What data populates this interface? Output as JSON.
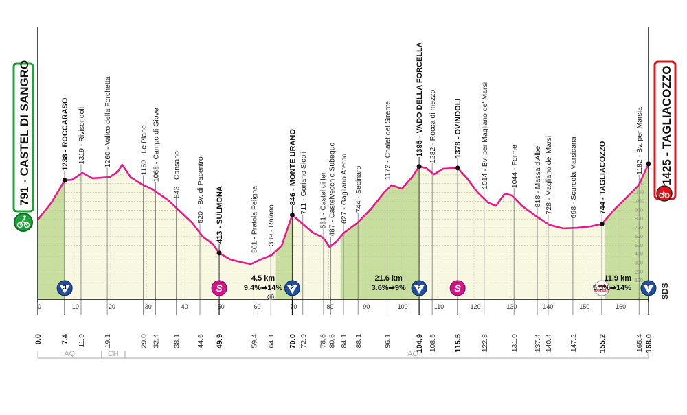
{
  "colors": {
    "profile_line": "#e8198b",
    "climb_fill": "#c8de9e",
    "flat_fill": "#f8f8e2",
    "start": "#1fa33a",
    "finish": "#e3141b",
    "kom": "#1f4e9c",
    "sprint": "#d4148a"
  },
  "start": {
    "label": "791 - CASTEL DI SANGRO",
    "icon": "cyclist-icon"
  },
  "finish": {
    "label": "1425 - TAGLIACOZZO",
    "icon": "cyclist-icon"
  },
  "chart_data": {
    "type": "area",
    "xlabel": "",
    "ylabel": "",
    "xlim": [
      0,
      168
    ],
    "grid": true,
    "x_ticks": [
      0,
      10,
      20,
      30,
      40,
      50,
      60,
      70,
      80,
      90,
      100,
      110,
      120,
      130,
      140,
      150,
      160
    ],
    "elevation_scale": [
      100,
      200,
      300,
      400,
      500,
      600,
      700,
      800,
      900,
      1000,
      1100,
      1200
    ],
    "profile": [
      [
        0,
        791
      ],
      [
        3.8,
        988
      ],
      [
        7.4,
        1238
      ],
      [
        9.4,
        1245
      ],
      [
        12.3,
        1323
      ],
      [
        15.1,
        1261
      ],
      [
        19.8,
        1276
      ],
      [
        22.1,
        1339
      ],
      [
        23.2,
        1416
      ],
      [
        25.5,
        1276
      ],
      [
        28.4,
        1198
      ],
      [
        31.2,
        1144
      ],
      [
        33.4,
        1082
      ],
      [
        35.9,
        1012
      ],
      [
        38.7,
        903
      ],
      [
        42.5,
        755
      ],
      [
        45.4,
        599
      ],
      [
        48.2,
        514
      ],
      [
        49.9,
        413
      ],
      [
        52.9,
        342
      ],
      [
        55.7,
        311
      ],
      [
        58.6,
        288
      ],
      [
        61.4,
        342
      ],
      [
        64.3,
        389
      ],
      [
        67.1,
        498
      ],
      [
        70.0,
        846
      ],
      [
        72.8,
        747
      ],
      [
        75.6,
        646
      ],
      [
        78.4,
        591
      ],
      [
        80.3,
        482
      ],
      [
        82.2,
        545
      ],
      [
        84.1,
        638
      ],
      [
        87.9,
        755
      ],
      [
        91.6,
        911
      ],
      [
        95.4,
        1105
      ],
      [
        97.3,
        1183
      ],
      [
        100.2,
        1144
      ],
      [
        103.0,
        1276
      ],
      [
        104.9,
        1395
      ],
      [
        106.8,
        1377
      ],
      [
        109.0,
        1307
      ],
      [
        111.5,
        1370
      ],
      [
        115.5,
        1378
      ],
      [
        118.1,
        1261
      ],
      [
        120.9,
        1105
      ],
      [
        123.8,
        988
      ],
      [
        126.0,
        949
      ],
      [
        128.5,
        1089
      ],
      [
        130.4,
        1066
      ],
      [
        133.2,
        949
      ],
      [
        137.0,
        833
      ],
      [
        140.8,
        732
      ],
      [
        144.6,
        693
      ],
      [
        148.3,
        700
      ],
      [
        152.1,
        716
      ],
      [
        155.2,
        744
      ],
      [
        158.7,
        911
      ],
      [
        162.5,
        1066
      ],
      [
        165.3,
        1183
      ],
      [
        168.0,
        1425
      ]
    ],
    "climb_sections": [
      [
        0,
        7.4
      ],
      [
        65.5,
        70.0
      ],
      [
        83.3,
        104.9
      ],
      [
        156.1,
        168.0
      ]
    ],
    "km_labels": [
      {
        "km": 0,
        "text": "0.0",
        "bold": true
      },
      {
        "km": 7.4,
        "text": "7.4",
        "bold": true
      },
      {
        "km": 11.9,
        "text": "11.9"
      },
      {
        "km": 19.1,
        "text": "19.1"
      },
      {
        "km": 29.0,
        "text": "29.0"
      },
      {
        "km": 32.4,
        "text": "32.4"
      },
      {
        "km": 38.1,
        "text": "38.1"
      },
      {
        "km": 44.6,
        "text": "44.6"
      },
      {
        "km": 49.9,
        "text": "49.9",
        "bold": true
      },
      {
        "km": 59.4,
        "text": "59.4"
      },
      {
        "km": 64.1,
        "text": "64.1"
      },
      {
        "km": 70.0,
        "text": "70.0",
        "bold": true
      },
      {
        "km": 72.9,
        "text": "72.9"
      },
      {
        "km": 78.6,
        "text": "78.6"
      },
      {
        "km": 80.6,
        "text": "80.6"
      },
      {
        "km": 84.1,
        "text": "84.1"
      },
      {
        "km": 88.1,
        "text": "88.1"
      },
      {
        "km": 96.1,
        "text": "96.1"
      },
      {
        "km": 104.9,
        "text": "104.9",
        "bold": true
      },
      {
        "km": 108.5,
        "text": "108.5"
      },
      {
        "km": 115.5,
        "text": "115.5",
        "bold": true
      },
      {
        "km": 122.8,
        "text": "122.8"
      },
      {
        "km": 131.0,
        "text": "131.0"
      },
      {
        "km": 137.4,
        "text": "137.4"
      },
      {
        "km": 140.4,
        "text": "140.4"
      },
      {
        "km": 147.2,
        "text": "147.2"
      },
      {
        "km": 155.2,
        "text": "155.2",
        "bold": true
      },
      {
        "km": 165.4,
        "text": "165.4"
      },
      {
        "km": 168.0,
        "text": "168.0",
        "bold": true
      }
    ],
    "waypoints": [
      {
        "km": 7.4,
        "text": "1238 - ROCCARASO",
        "bold": true,
        "dot": true
      },
      {
        "km": 11.9,
        "text": "1319 - Rivisondoli"
      },
      {
        "km": 19.1,
        "text": "1260 - Valico della Forchetta"
      },
      {
        "km": 29.0,
        "text": "1159 - Le Piane"
      },
      {
        "km": 32.4,
        "text": "1068 - Campo di Giove"
      },
      {
        "km": 38.1,
        "text": "843 - Cansano"
      },
      {
        "km": 44.6,
        "text": "520 - Bv. di Pacentro"
      },
      {
        "km": 49.9,
        "text": "413 - SULMONA",
        "bold": true,
        "dot": true
      },
      {
        "km": 59.4,
        "text": "301 - Pratola Peligna"
      },
      {
        "km": 64.1,
        "text": "389 - Raiano"
      },
      {
        "km": 70.0,
        "text": "846 - MONTE URANO",
        "bold": true,
        "dot": true
      },
      {
        "km": 72.9,
        "text": "711 - Goriano Sicoli"
      },
      {
        "km": 78.6,
        "text": "531 - Castel di Ieri"
      },
      {
        "km": 80.6,
        "text": "487 - Castelvecchio Subequo"
      },
      {
        "km": 84.1,
        "text": "627 - Gagliano Aterno"
      },
      {
        "km": 88.1,
        "text": "744 - Secinaro"
      },
      {
        "km": 96.1,
        "text": "1172 - Chalet del Sirente"
      },
      {
        "km": 104.9,
        "text": "1395 - VADO DELLA FORCELLA",
        "bold": true,
        "dot": true
      },
      {
        "km": 108.5,
        "text": "1282 - Rocca di mezzo"
      },
      {
        "km": 115.5,
        "text": "1378 - OVINDOLI",
        "bold": true,
        "dot": true
      },
      {
        "km": 122.8,
        "text": "1014 - Bv. per Magliano de' Marsi"
      },
      {
        "km": 131.0,
        "text": "1044 - Forme"
      },
      {
        "km": 137.4,
        "text": "818 - Massa d'Albe"
      },
      {
        "km": 140.4,
        "text": "728 - Magliano de' Marsi"
      },
      {
        "km": 147.2,
        "text": "698 - Scurcola Marsicana"
      },
      {
        "km": 155.2,
        "text": "744 - TAGLIACOZZO",
        "bold": true,
        "dot": true
      },
      {
        "km": 165.4,
        "text": "1182 - Bv. per Marsia"
      }
    ],
    "markers": [
      {
        "km": 7.4,
        "type": "kom",
        "text": "3",
        "icon": "kom-cat3-icon"
      },
      {
        "km": 49.9,
        "type": "sprint",
        "text": "S",
        "icon": "sprint-icon"
      },
      {
        "km": 70.0,
        "type": "kom",
        "text": "2",
        "icon": "kom-cat2-icon"
      },
      {
        "km": 104.9,
        "type": "kom",
        "text": "2",
        "icon": "kom-cat2-icon"
      },
      {
        "km": 115.5,
        "type": "sprint",
        "text": "S",
        "icon": "sprint-icon"
      },
      {
        "km": 155.2,
        "type": "redbull",
        "text": "Red Bull",
        "icon": "red-bull-km-icon"
      },
      {
        "km": 168.0,
        "type": "kom",
        "text": "1",
        "icon": "kom-cat1-icon"
      }
    ],
    "climbs": [
      {
        "km": 62,
        "length": "4.5 km",
        "gradient": "9.4%➡14%"
      },
      {
        "km": 96.5,
        "length": "21.6 km",
        "gradient": "3.6%➡9%"
      },
      {
        "km": 161.5,
        "length": "11.9 km",
        "gradient": "5.5%➡14%"
      }
    ],
    "intermediate_icon": {
      "km": 64.1,
      "icon": "intermediate-point-icon"
    },
    "sds_label": "SDS",
    "regions": [
      {
        "from": 0,
        "to": 17.5,
        "text": "AQ"
      },
      {
        "from": 17.5,
        "to": 24,
        "text": "CH"
      },
      {
        "from": 24,
        "to": 168,
        "text": "AQ"
      }
    ]
  }
}
